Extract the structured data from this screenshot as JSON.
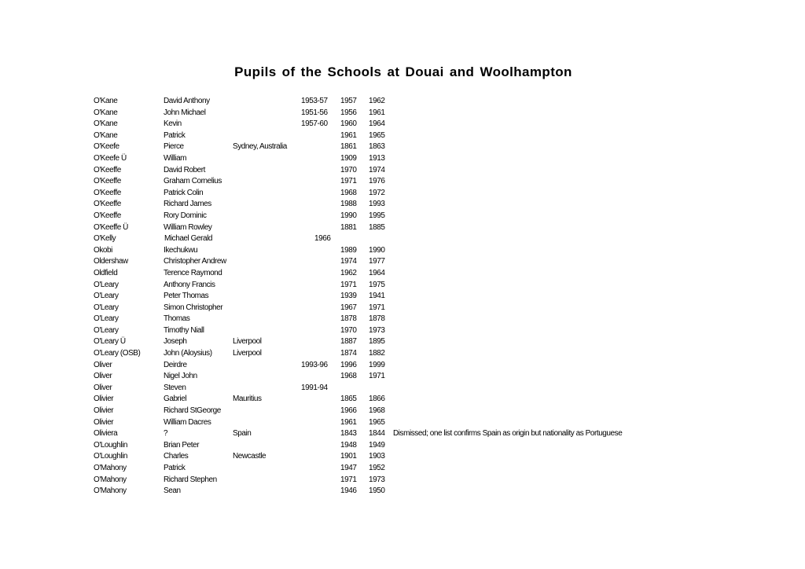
{
  "title": "Pupils of the Schools at Douai and Woolhampton",
  "rows": [
    [
      "O'Kane",
      "David Anthony",
      "",
      "1953-57",
      "1957",
      "1962",
      ""
    ],
    [
      "O'Kane",
      "John Michael",
      "",
      "1951-56",
      "1956",
      "1961",
      ""
    ],
    [
      "O'Kane",
      "Kevin",
      "",
      "1957-60",
      "1960",
      "1964",
      ""
    ],
    [
      "O'Kane",
      "Patrick",
      "",
      "",
      "1961",
      "1965",
      ""
    ],
    [
      "O'Keefe",
      "Pierce",
      "Sydney, Australia",
      "",
      "1861",
      "1863",
      ""
    ],
    [
      "O'Keefe Ü",
      "William",
      "",
      "",
      "1909",
      "1913",
      ""
    ],
    [
      "O'Keeffe",
      "David Robert",
      "",
      "",
      "1970",
      "1974",
      ""
    ],
    [
      "O'Keeffe",
      "Graham Cornelius",
      "",
      "",
      "1971",
      "1976",
      ""
    ],
    [
      "O'Keeffe",
      "Patrick Colin",
      "",
      "",
      "1968",
      "1972",
      ""
    ],
    [
      "O'Keeffe",
      "Richard James",
      "",
      "",
      "1988",
      "1993",
      ""
    ],
    [
      "O'Keeffe",
      "Rory Dominic",
      "",
      "",
      "1990",
      "1995",
      ""
    ],
    [
      "O'Keeffe Ü",
      "William Rowley",
      "",
      "",
      "1881",
      "1885",
      ""
    ],
    [
      "O'Kelly",
      "Michael Gerald",
      "",
      "1966",
      "",
      "",
      ""
    ],
    [
      "Okobi",
      "Ikechukwu",
      "",
      "",
      "1989",
      "1990",
      ""
    ],
    [
      "Oldershaw",
      "Christopher Andrew",
      "",
      "",
      "1974",
      "1977",
      ""
    ],
    [
      "Oldfield",
      "Terence Raymond",
      "",
      "",
      "1962",
      "1964",
      ""
    ],
    [
      "O'Leary",
      "Anthony Francis",
      "",
      "",
      "1971",
      "1975",
      ""
    ],
    [
      "O'Leary",
      "Peter Thomas",
      "",
      "",
      "1939",
      "1941",
      ""
    ],
    [
      "O'Leary",
      "Simon Christopher",
      "",
      "",
      "1967",
      "1971",
      ""
    ],
    [
      "O'Leary",
      "Thomas",
      "",
      "",
      "1878",
      "1878",
      ""
    ],
    [
      "O'Leary",
      "Timothy Niall",
      "",
      "",
      "1970",
      "1973",
      ""
    ],
    [
      "O'Leary Ü",
      "Joseph",
      "Liverpool",
      "",
      "1887",
      "1895",
      ""
    ],
    [
      "O'Leary (OSB)",
      "John (Aloysius)",
      "Liverpool",
      "",
      "1874",
      "1882",
      ""
    ],
    [
      "Oliver",
      "Deirdre",
      "",
      "1993-96",
      "1996",
      "1999",
      ""
    ],
    [
      "Oliver",
      "Nigel John",
      "",
      "",
      "1968",
      "1971",
      ""
    ],
    [
      "Oliver",
      "Steven",
      "",
      "1991-94",
      "",
      "",
      ""
    ],
    [
      "Olivier",
      "Gabriel",
      "Mauritius",
      "",
      "1865",
      "1866",
      ""
    ],
    [
      "Olivier",
      "Richard StGeorge",
      "",
      "",
      "1966",
      "1968",
      ""
    ],
    [
      "Olivier",
      "William Dacres",
      "",
      "",
      "1961",
      "1965",
      ""
    ],
    [
      "Oliviera",
      "?",
      "Spain",
      "",
      "1843",
      "1844",
      "Dismissed; one list confirms Spain as origin but nationality as Portuguese"
    ],
    [
      "O'Loughlin",
      "Brian Peter",
      "",
      "",
      "1948",
      "1949",
      ""
    ],
    [
      "O'Loughlin",
      "Charles",
      "Newcastle",
      "",
      "1901",
      "1903",
      ""
    ],
    [
      "O'Mahony",
      "Patrick",
      "",
      "",
      "1947",
      "1952",
      ""
    ],
    [
      "O'Mahony",
      "Richard Stephen",
      "",
      "",
      "1971",
      "1973",
      ""
    ],
    [
      "O'Mahony",
      "Sean",
      "",
      "",
      "1946",
      "1950",
      ""
    ]
  ]
}
